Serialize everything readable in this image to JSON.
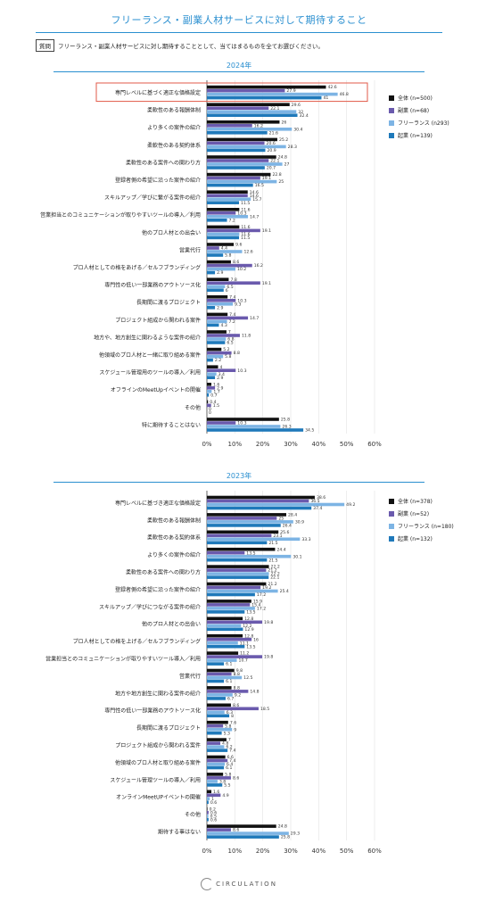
{
  "title": "フリーランス・副業人材サービスに対して期待すること",
  "question": {
    "label": "質問",
    "text": "フリーランス・副業人材サービスに対し期待することとして、当てはまるものを全てお選びください。"
  },
  "logo_text": "CIRCULATION",
  "colors": [
    "#111111",
    "#6a5aad",
    "#7db4e4",
    "#1f79ba"
  ],
  "highlight_color": "#e25a48",
  "chart_data": [
    {
      "type": "bar",
      "title": "2024年",
      "orientation": "horizontal",
      "xlim": [
        0,
        60
      ],
      "xticks": [
        "0%",
        "10%",
        "20%",
        "30%",
        "40%",
        "50%",
        "60%"
      ],
      "highlight_category_index": 0,
      "series": [
        {
          "name": "全体 (n=500)"
        },
        {
          "name": "副業 (n=68)"
        },
        {
          "name": "フリーランス (n293)"
        },
        {
          "name": "起業 (n=139)"
        }
      ],
      "categories": [
        {
          "label": "専門レベルに基づく適正な価格設定",
          "values": [
            42.6,
            27.9,
            46.8,
            41
          ]
        },
        {
          "label": "柔軟性のある報酬体制",
          "values": [
            29.6,
            22.1,
            32,
            32.4
          ]
        },
        {
          "label": "より多くの案件の紹介",
          "values": [
            26,
            16.2,
            30.4,
            21.6
          ]
        },
        {
          "label": "柔軟性のある契約体系",
          "values": [
            25.2,
            20.6,
            28.3,
            20.9
          ]
        },
        {
          "label": "柔軟性のある案件への関わり方",
          "values": [
            24.8,
            22.1,
            27,
            20.7
          ]
        },
        {
          "label": "登録者側の希望に沿った案件の紹介",
          "values": [
            22.8,
            19.1,
            25,
            16.5
          ]
        },
        {
          "label": "スキルアップ／学びに繋がる案件の紹介",
          "values": [
            14.6,
            14.6,
            15.7,
            11.5
          ]
        },
        {
          "label": "営業担当とのコミュニケーションが取りやすいツールの導入／利用",
          "values": [
            11.6,
            10.3,
            14.7,
            7.2
          ]
        },
        {
          "label": "他のプロ人材との出会い",
          "values": [
            11.6,
            19.1,
            11.6,
            11.5
          ]
        },
        {
          "label": "営業代行",
          "values": [
            9.6,
            4.4,
            12.6,
            5.8
          ]
        },
        {
          "label": "プロ人材としての格をあげる／セルフブランディング",
          "values": [
            8.6,
            16.2,
            10.2,
            2.9
          ]
        },
        {
          "label": "専門性の低い一部業務のアウトソース化",
          "values": [
            7.8,
            19.1,
            6.5,
            6
          ]
        },
        {
          "label": "長期間に渡るプロジェクト",
          "values": [
            7.4,
            10.3,
            9.3,
            2.9
          ]
        },
        {
          "label": "プロジェクト組成から関われる案件",
          "values": [
            7.4,
            14.7,
            7.2,
            4.3
          ]
        },
        {
          "label": "地方や、地方創生に関わるような案件の紹介",
          "values": [
            7,
            11.8,
            6.8,
            6.5
          ]
        },
        {
          "label": "他領域のプロ人材と一緒に取り組める案件",
          "values": [
            5.2,
            8.8,
            5.8,
            2.2
          ]
        },
        {
          "label": "スケジュール管理用のツールの導入／利用",
          "values": [
            4,
            10.3,
            3.4,
            2.9
          ]
        },
        {
          "label": "オフラインのMeetUpイベントの開催",
          "values": [
            1.6,
            2.9,
            1.7,
            0.7
          ]
        },
        {
          "label": "その他",
          "values": [
            0.4,
            1.5,
            0,
            0
          ]
        },
        {
          "label": "特に期待することはない",
          "values": [
            25.8,
            10.3,
            26.3,
            34.5
          ]
        }
      ]
    },
    {
      "type": "bar",
      "title": "2023年",
      "orientation": "horizontal",
      "xlim": [
        0,
        60
      ],
      "xticks": [
        "0%",
        "10%",
        "20%",
        "30%",
        "40%",
        "50%",
        "60%"
      ],
      "series": [
        {
          "name": "全体 (n=378)"
        },
        {
          "name": "副業 (n=52)"
        },
        {
          "name": "フリーランス (n=180)"
        },
        {
          "name": "起業 (n=132)"
        }
      ],
      "categories": [
        {
          "label": "専門レベルに基づき適正な価格設定",
          "values": [
            38.6,
            36.5,
            49.2,
            37.4
          ]
        },
        {
          "label": "柔軟性のある報酬体制",
          "values": [
            28.4,
            25,
            30.9,
            26.4
          ]
        },
        {
          "label": "柔軟性のある契約体系",
          "values": [
            25.6,
            23.1,
            33.3,
            21.5
          ]
        },
        {
          "label": "より多くの案件の紹介",
          "values": [
            24.4,
            13.5,
            30.1,
            21.5
          ]
        },
        {
          "label": "柔軟性のある案件への関わり方",
          "values": [
            22.2,
            21.2,
            22.2,
            22.1
          ]
        },
        {
          "label": "登録者側の希望に沿った案件の紹介",
          "values": [
            21.2,
            19.2,
            25.4,
            17.2
          ]
        },
        {
          "label": "スキルアップ／学びにつながる案件の紹介",
          "values": [
            15.9,
            15.4,
            17.2,
            13.5
          ]
        },
        {
          "label": "他のプロ人材との出会い",
          "values": [
            12.8,
            19.8,
            12.2,
            12.9
          ]
        },
        {
          "label": "プロ人材としての格を上げる／セルフブランディング",
          "values": [
            12.8,
            16,
            11.1,
            13.5
          ]
        },
        {
          "label": "営業担当とのコミュニケーションが取りやすいツール導入／利用",
          "values": [
            11.2,
            19.8,
            10.7,
            6.1
          ]
        },
        {
          "label": "営業代行",
          "values": [
            9.8,
            8.8,
            12.5,
            6.1
          ]
        },
        {
          "label": "地方や地方創生に関わる案件の紹介",
          "values": [
            8.8,
            14.8,
            9.2,
            6.7
          ]
        },
        {
          "label": "専門性の低い一部業務のアウトソース化",
          "values": [
            8.6,
            18.5,
            6.3,
            8
          ]
        },
        {
          "label": "長期間に渡るプロジェクト",
          "values": [
            7.6,
            5.8,
            9,
            5.3
          ]
        },
        {
          "label": "プロジェクト組成から関われる案件",
          "values": [
            7,
            4.8,
            6.2,
            7.4
          ]
        },
        {
          "label": "他領域のプロ人材と取り組める案件",
          "values": [
            6.6,
            7.4,
            6.4,
            6.1
          ]
        },
        {
          "label": "スケジュール管理ツールの導入／利用",
          "values": [
            5.8,
            8.6,
            3.8,
            5.5
          ]
        },
        {
          "label": "オンラインMeetUPイベントの開催",
          "values": [
            1.6,
            4.9,
            1,
            0.6
          ]
        },
        {
          "label": "その他",
          "values": [
            0.2,
            0.6,
            0.5,
            0.6
          ]
        },
        {
          "label": "期待する事はない",
          "values": [
            24.8,
            8.6,
            29.3,
            25.8
          ]
        }
      ]
    }
  ]
}
